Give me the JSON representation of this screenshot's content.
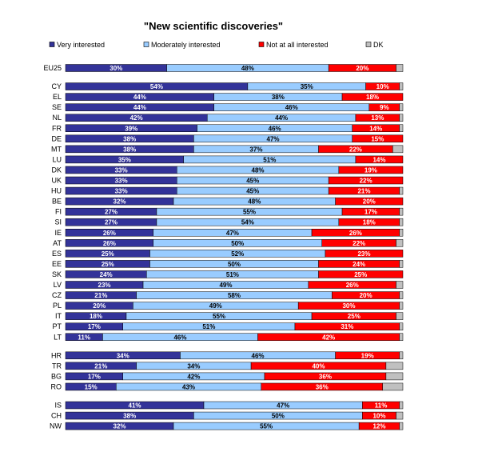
{
  "chart_data": {
    "type": "bar",
    "orientation": "horizontal",
    "stacked": true,
    "normalized": true,
    "title": "\"New scientific discoveries\"",
    "legend_position": "top",
    "series": [
      {
        "name": "Very interested",
        "color": "#333399"
      },
      {
        "name": "Moderately interested",
        "color": "#99CCFF"
      },
      {
        "name": "Not at all interested",
        "color": "#FF0000"
      },
      {
        "name": "DK",
        "color": "#C0C0C0"
      }
    ],
    "groups": [
      {
        "rows": [
          {
            "country": "EU25",
            "values": [
              30,
              48,
              20,
              2
            ],
            "labels": [
              "30%",
              "48%",
              "20%",
              ""
            ]
          }
        ]
      },
      {
        "rows": [
          {
            "country": "CY",
            "values": [
              54,
              35,
              10,
              1
            ],
            "labels": [
              "54%",
              "35%",
              "10%",
              ""
            ]
          },
          {
            "country": "EL",
            "values": [
              44,
              38,
              18,
              0
            ],
            "labels": [
              "44%",
              "38%",
              "18%",
              ""
            ]
          },
          {
            "country": "SE",
            "values": [
              44,
              46,
              9,
              1
            ],
            "labels": [
              "44%",
              "46%",
              "9%",
              ""
            ]
          },
          {
            "country": "NL",
            "values": [
              42,
              44,
              13,
              1
            ],
            "labels": [
              "42%",
              "44%",
              "13%",
              ""
            ]
          },
          {
            "country": "FR",
            "values": [
              39,
              46,
              14,
              1
            ],
            "labels": [
              "39%",
              "46%",
              "14%",
              ""
            ]
          },
          {
            "country": "DE",
            "values": [
              38,
              47,
              15,
              0
            ],
            "labels": [
              "38%",
              "47%",
              "15%",
              ""
            ]
          },
          {
            "country": "MT",
            "values": [
              38,
              37,
              22,
              3
            ],
            "labels": [
              "38%",
              "37%",
              "22%",
              ""
            ]
          },
          {
            "country": "LU",
            "values": [
              35,
              51,
              14,
              0
            ],
            "labels": [
              "35%",
              "51%",
              "14%",
              ""
            ]
          },
          {
            "country": "DK",
            "values": [
              33,
              48,
              19,
              0
            ],
            "labels": [
              "33%",
              "48%",
              "19%",
              ""
            ]
          },
          {
            "country": "UK",
            "values": [
              33,
              45,
              22,
              0
            ],
            "labels": [
              "33%",
              "45%",
              "22%",
              ""
            ]
          },
          {
            "country": "HU",
            "values": [
              33,
              45,
              21,
              1
            ],
            "labels": [
              "33%",
              "45%",
              "21%",
              ""
            ]
          },
          {
            "country": "BE",
            "values": [
              32,
              48,
              20,
              0
            ],
            "labels": [
              "32%",
              "48%",
              "20%",
              ""
            ]
          },
          {
            "country": "FI",
            "values": [
              27,
              55,
              17,
              1
            ],
            "labels": [
              "27%",
              "55%",
              "17%",
              ""
            ]
          },
          {
            "country": "SI",
            "values": [
              27,
              54,
              18,
              1
            ],
            "labels": [
              "27%",
              "54%",
              "18%",
              ""
            ]
          },
          {
            "country": "IE",
            "values": [
              26,
              47,
              26,
              1
            ],
            "labels": [
              "26%",
              "47%",
              "26%",
              ""
            ]
          },
          {
            "country": "AT",
            "values": [
              26,
              50,
              22,
              2
            ],
            "labels": [
              "26%",
              "50%",
              "22%",
              ""
            ]
          },
          {
            "country": "ES",
            "values": [
              25,
              52,
              23,
              0
            ],
            "labels": [
              "25%",
              "52%",
              "23%",
              ""
            ]
          },
          {
            "country": "EE",
            "values": [
              25,
              50,
              24,
              1
            ],
            "labels": [
              "25%",
              "50%",
              "24%",
              ""
            ]
          },
          {
            "country": "SK",
            "values": [
              24,
              51,
              25,
              0
            ],
            "labels": [
              "24%",
              "51%",
              "25%",
              ""
            ]
          },
          {
            "country": "LV",
            "values": [
              23,
              49,
              26,
              2
            ],
            "labels": [
              "23%",
              "49%",
              "26%",
              ""
            ]
          },
          {
            "country": "CZ",
            "values": [
              21,
              58,
              20,
              1
            ],
            "labels": [
              "21%",
              "58%",
              "20%",
              ""
            ]
          },
          {
            "country": "PL",
            "values": [
              20,
              49,
              30,
              1
            ],
            "labels": [
              "20%",
              "49%",
              "30%",
              ""
            ]
          },
          {
            "country": "IT",
            "values": [
              18,
              55,
              25,
              2
            ],
            "labels": [
              "18%",
              "55%",
              "25%",
              ""
            ]
          },
          {
            "country": "PT",
            "values": [
              17,
              51,
              31,
              1
            ],
            "labels": [
              "17%",
              "51%",
              "31%",
              ""
            ]
          },
          {
            "country": "LT",
            "values": [
              11,
              46,
              42,
              1
            ],
            "labels": [
              "11%",
              "46%",
              "42%",
              ""
            ]
          }
        ]
      },
      {
        "rows": [
          {
            "country": "HR",
            "values": [
              34,
              46,
              19,
              1
            ],
            "labels": [
              "34%",
              "46%",
              "19%",
              ""
            ]
          },
          {
            "country": "TR",
            "values": [
              21,
              34,
              40,
              5
            ],
            "labels": [
              "21%",
              "34%",
              "40%",
              ""
            ]
          },
          {
            "country": "BG",
            "values": [
              17,
              42,
              36,
              5
            ],
            "labels": [
              "17%",
              "42%",
              "36%",
              ""
            ]
          },
          {
            "country": "RO",
            "values": [
              15,
              43,
              36,
              6
            ],
            "labels": [
              "15%",
              "43%",
              "36%",
              ""
            ]
          }
        ]
      },
      {
        "rows": [
          {
            "country": "IS",
            "values": [
              41,
              47,
              11,
              1
            ],
            "labels": [
              "41%",
              "47%",
              "11%",
              ""
            ]
          },
          {
            "country": "CH",
            "values": [
              38,
              50,
              10,
              2
            ],
            "labels": [
              "38%",
              "50%",
              "10%",
              ""
            ]
          },
          {
            "country": "NW",
            "values": [
              32,
              55,
              12,
              1
            ],
            "labels": [
              "32%",
              "55%",
              "12%",
              ""
            ]
          }
        ]
      }
    ]
  }
}
